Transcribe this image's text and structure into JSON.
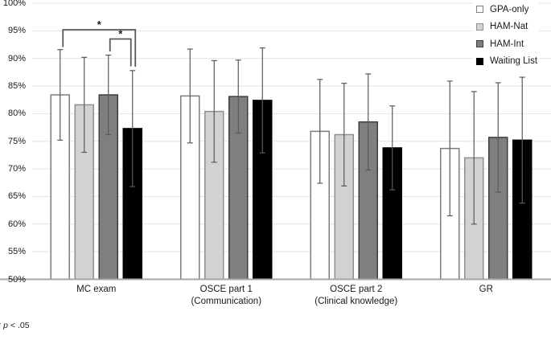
{
  "figure": {
    "kind": "grouped-bar-chart-with-error-bars"
  },
  "chart_data": {
    "type": "bar",
    "title": "",
    "xlabel": "",
    "ylabel": "",
    "categories": [
      {
        "lines": [
          "MC exam"
        ]
      },
      {
        "lines": [
          "OSCE part 1",
          "(Communication)"
        ]
      },
      {
        "lines": [
          "OSCE part 2",
          "(Clinical knowledge)"
        ]
      },
      {
        "lines": [
          "GR"
        ]
      }
    ],
    "series": [
      {
        "name": "GPA-only",
        "fill": "#ffffff",
        "border": "#7d7d7d",
        "values": [
          83.4,
          83.2,
          76.8,
          73.7
        ],
        "errors": [
          8.2,
          8.5,
          9.4,
          12.2
        ]
      },
      {
        "name": "HAM-Nat",
        "fill": "#d2d2d2",
        "border": "#8f8f8f",
        "values": [
          81.6,
          80.4,
          76.2,
          72.0
        ],
        "errors": [
          8.6,
          9.2,
          9.3,
          12.0
        ]
      },
      {
        "name": "HAM-Int",
        "fill": "#7f7f7f",
        "border": "#3d3d3d",
        "values": [
          83.4,
          83.1,
          78.5,
          75.7
        ],
        "errors": [
          7.2,
          6.6,
          8.7,
          9.9
        ]
      },
      {
        "name": "Waiting List",
        "fill": "#000000",
        "border": "#000000",
        "values": [
          77.3,
          82.4,
          73.8,
          75.2
        ],
        "errors": [
          10.5,
          9.5,
          7.6,
          11.4
        ]
      }
    ],
    "y_axis": {
      "min": 50,
      "max": 100,
      "step": 5,
      "tick_suffix": "%",
      "tick_labels": [
        "50%",
        "55%",
        "60%",
        "65%",
        "70%",
        "75%",
        "80%",
        "85%",
        "90%",
        "95%",
        "100%"
      ]
    },
    "grid": true,
    "legend_position": "top-right",
    "significance": [
      {
        "category_index": 0,
        "between": [
          "GPA-only",
          "Waiting List"
        ],
        "pair": [
          0,
          3
        ],
        "label": "*",
        "bracket": {
          "y": 37,
          "x1_offset": 3.5,
          "x2_offset": 3.5,
          "left_drop_to": 58.5,
          "right_drop_to": 83
        }
      },
      {
        "category_index": 0,
        "between": [
          "HAM-Int",
          "Waiting List"
        ],
        "pair": [
          2,
          3
        ],
        "label": "*",
        "bracket": {
          "y": 48.5,
          "x1_offset": 2,
          "x2_offset": -2,
          "left_drop_to": 64,
          "right_drop_to": 82.5
        }
      }
    ],
    "footnote": {
      "marker": "*",
      "symbol": "p",
      "comparison": "< .05"
    },
    "colors": {
      "gridline": "#e2e2e2",
      "axis_line": "#a6a6a6",
      "error_bar": "#595959",
      "bracket": "#595959",
      "text": "#1a1a1a"
    }
  }
}
